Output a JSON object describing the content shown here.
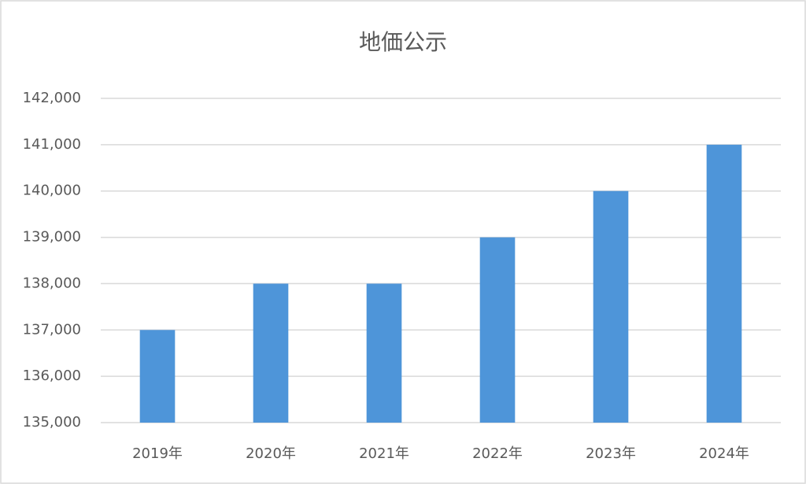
{
  "chart_data": {
    "type": "bar",
    "title": "地価公示",
    "categories": [
      "2019年",
      "2020年",
      "2021年",
      "2022年",
      "2023年",
      "2024年"
    ],
    "values": [
      137000,
      138000,
      138000,
      139000,
      140000,
      141000
    ],
    "color": "#4e95d9",
    "ylim": [
      135000,
      142000
    ],
    "yticks": [
      {
        "value": 135000,
        "label": "135,000"
      },
      {
        "value": 136000,
        "label": "136,000"
      },
      {
        "value": 137000,
        "label": "137,000"
      },
      {
        "value": 138000,
        "label": "138,000"
      },
      {
        "value": 139000,
        "label": "139,000"
      },
      {
        "value": 140000,
        "label": "140,000"
      },
      {
        "value": 141000,
        "label": "141,000"
      },
      {
        "value": 142000,
        "label": "142,000"
      }
    ],
    "grid": true
  }
}
